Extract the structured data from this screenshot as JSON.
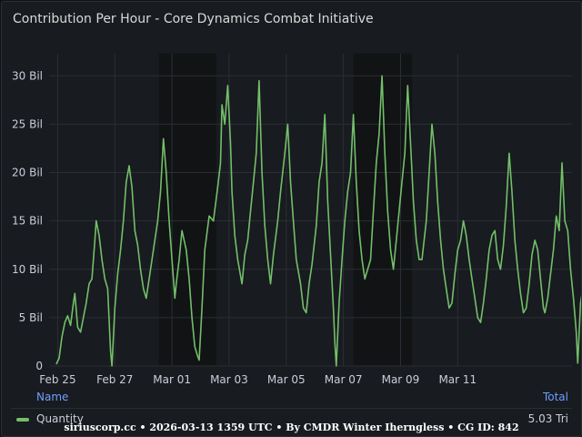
{
  "panel": {
    "title": "Contribution Per Hour - Core Dynamics Combat Initiative"
  },
  "colors": {
    "series": "#73bf69",
    "background": "#181b1f",
    "grid": "#2b2e33",
    "highlight_band": "#111315",
    "legend_header": "#6e9fff"
  },
  "legend": {
    "name_header": "Name",
    "total_header": "Total",
    "rows": [
      {
        "label": "Quantity",
        "total": "5.03 Tri"
      }
    ]
  },
  "watermark": "siriuscorp.cc • 2026-03-13 1359 UTC • By CMDR Winter Iherngless • CG ID: 842",
  "chart_data": {
    "type": "line",
    "ylim": [
      0,
      32
    ],
    "y_unit": "Bil",
    "y_tick_labels": [
      "0",
      "5 Bil",
      "10 Bil",
      "15 Bil",
      "20 Bil",
      "25 Bil",
      "30 Bil"
    ],
    "y_tick_values": [
      0,
      5,
      10,
      15,
      20,
      25,
      30
    ],
    "x_range_days": [
      24.7,
      43.0
    ],
    "x_tick_labels": [
      "Feb 25",
      "Feb 27",
      "Mar 01",
      "Mar 03",
      "Mar 05",
      "Mar 07",
      "Mar 09",
      "Mar 11"
    ],
    "x_tick_days": [
      25,
      27,
      29,
      31,
      33,
      35,
      37,
      39
    ],
    "shaded_bands_days": [
      [
        28.55,
        30.55
      ],
      [
        35.35,
        37.4
      ]
    ],
    "grid": true,
    "series": [
      {
        "name": "Quantity",
        "points": [
          [
            24.95,
            0.2
          ],
          [
            25.05,
            0.8
          ],
          [
            25.15,
            3.0
          ],
          [
            25.25,
            4.5
          ],
          [
            25.35,
            5.2
          ],
          [
            25.45,
            4.2
          ],
          [
            25.55,
            6.5
          ],
          [
            25.6,
            7.5
          ],
          [
            25.7,
            4.0
          ],
          [
            25.8,
            3.5
          ],
          [
            25.9,
            5.0
          ],
          [
            26.0,
            6.5
          ],
          [
            26.1,
            8.5
          ],
          [
            26.2,
            9.0
          ],
          [
            26.3,
            13.0
          ],
          [
            26.35,
            15.0
          ],
          [
            26.45,
            13.5
          ],
          [
            26.55,
            11.0
          ],
          [
            26.65,
            9.0
          ],
          [
            26.75,
            8.0
          ],
          [
            26.85,
            1.5
          ],
          [
            26.9,
            0.0
          ],
          [
            27.0,
            6.0
          ],
          [
            27.1,
            9.5
          ],
          [
            27.2,
            12.0
          ],
          [
            27.3,
            15.0
          ],
          [
            27.4,
            19.0
          ],
          [
            27.5,
            20.7
          ],
          [
            27.6,
            18.5
          ],
          [
            27.7,
            14.0
          ],
          [
            27.8,
            12.5
          ],
          [
            27.9,
            10.0
          ],
          [
            28.0,
            8.0
          ],
          [
            28.1,
            7.0
          ],
          [
            28.2,
            9.0
          ],
          [
            28.35,
            12.0
          ],
          [
            28.5,
            15.0
          ],
          [
            28.6,
            18.0
          ],
          [
            28.7,
            23.5
          ],
          [
            28.8,
            20.0
          ],
          [
            28.9,
            15.0
          ],
          [
            29.0,
            11.0
          ],
          [
            29.1,
            7.0
          ],
          [
            29.15,
            8.5
          ],
          [
            29.25,
            11.0
          ],
          [
            29.35,
            14.0
          ],
          [
            29.5,
            12.0
          ],
          [
            29.6,
            9.0
          ],
          [
            29.7,
            5.0
          ],
          [
            29.8,
            2.0
          ],
          [
            29.9,
            1.0
          ],
          [
            29.95,
            0.6
          ],
          [
            30.05,
            6.0
          ],
          [
            30.15,
            12.0
          ],
          [
            30.3,
            15.5
          ],
          [
            30.45,
            15.0
          ],
          [
            30.6,
            18.5
          ],
          [
            30.7,
            21.0
          ],
          [
            30.75,
            27.0
          ],
          [
            30.85,
            25.0
          ],
          [
            30.95,
            29.0
          ],
          [
            31.05,
            23.0
          ],
          [
            31.1,
            18.0
          ],
          [
            31.2,
            13.5
          ],
          [
            31.3,
            11.0
          ],
          [
            31.45,
            8.5
          ],
          [
            31.55,
            11.5
          ],
          [
            31.65,
            13.0
          ],
          [
            31.75,
            16.0
          ],
          [
            31.85,
            19.0
          ],
          [
            31.95,
            22.0
          ],
          [
            32.05,
            29.5
          ],
          [
            32.15,
            20.0
          ],
          [
            32.25,
            14.5
          ],
          [
            32.35,
            11.0
          ],
          [
            32.45,
            8.5
          ],
          [
            32.55,
            11.5
          ],
          [
            32.7,
            15.0
          ],
          [
            32.8,
            18.0
          ],
          [
            32.95,
            22.0
          ],
          [
            33.05,
            25.0
          ],
          [
            33.15,
            19.0
          ],
          [
            33.25,
            15.0
          ],
          [
            33.35,
            11.0
          ],
          [
            33.5,
            8.5
          ],
          [
            33.6,
            6.0
          ],
          [
            33.7,
            5.5
          ],
          [
            33.8,
            8.5
          ],
          [
            33.9,
            10.5
          ],
          [
            34.05,
            14.5
          ],
          [
            34.15,
            19.0
          ],
          [
            34.25,
            21.0
          ],
          [
            34.35,
            26.0
          ],
          [
            34.45,
            17.0
          ],
          [
            34.55,
            11.5
          ],
          [
            34.65,
            6.0
          ],
          [
            34.7,
            2.5
          ],
          [
            34.75,
            0.0
          ],
          [
            34.85,
            6.5
          ],
          [
            34.95,
            11.0
          ],
          [
            35.05,
            15.0
          ],
          [
            35.15,
            18.0
          ],
          [
            35.25,
            20.0
          ],
          [
            35.35,
            26.0
          ],
          [
            35.45,
            19.0
          ],
          [
            35.55,
            14.0
          ],
          [
            35.65,
            11.0
          ],
          [
            35.75,
            9.0
          ],
          [
            35.85,
            10.0
          ],
          [
            35.95,
            11.0
          ],
          [
            36.05,
            16.0
          ],
          [
            36.15,
            21.0
          ],
          [
            36.25,
            24.0
          ],
          [
            36.35,
            30.0
          ],
          [
            36.45,
            22.0
          ],
          [
            36.55,
            16.0
          ],
          [
            36.65,
            12.0
          ],
          [
            36.75,
            10.0
          ],
          [
            36.85,
            13.0
          ],
          [
            36.95,
            16.0
          ],
          [
            37.05,
            19.0
          ],
          [
            37.15,
            22.0
          ],
          [
            37.25,
            29.0
          ],
          [
            37.35,
            23.0
          ],
          [
            37.45,
            17.0
          ],
          [
            37.55,
            13.0
          ],
          [
            37.65,
            11.0
          ],
          [
            37.75,
            11.0
          ],
          [
            37.9,
            15.0
          ],
          [
            38.0,
            20.0
          ],
          [
            38.1,
            25.0
          ],
          [
            38.2,
            22.0
          ],
          [
            38.3,
            17.0
          ],
          [
            38.4,
            13.0
          ],
          [
            38.5,
            10.0
          ],
          [
            38.6,
            8.0
          ],
          [
            38.7,
            6.0
          ],
          [
            38.8,
            6.5
          ],
          [
            38.9,
            9.5
          ],
          [
            39.0,
            12.0
          ],
          [
            39.1,
            13.0
          ],
          [
            39.2,
            15.0
          ],
          [
            39.3,
            13.5
          ],
          [
            39.4,
            11.0
          ],
          [
            39.5,
            9.0
          ],
          [
            39.6,
            7.0
          ],
          [
            39.7,
            5.0
          ],
          [
            39.8,
            4.5
          ],
          [
            39.9,
            6.5
          ],
          [
            40.0,
            9.0
          ],
          [
            40.1,
            12.0
          ],
          [
            40.2,
            13.5
          ],
          [
            40.3,
            14.0
          ],
          [
            40.4,
            11.0
          ],
          [
            40.5,
            10.0
          ],
          [
            40.6,
            12.5
          ],
          [
            40.7,
            16.5
          ],
          [
            40.8,
            22.0
          ],
          [
            40.9,
            18.0
          ],
          [
            41.0,
            13.0
          ],
          [
            41.1,
            10.0
          ],
          [
            41.2,
            7.5
          ],
          [
            41.3,
            5.5
          ],
          [
            41.4,
            6.0
          ],
          [
            41.5,
            8.5
          ],
          [
            41.6,
            11.5
          ],
          [
            41.7,
            13.0
          ],
          [
            41.8,
            12.0
          ],
          [
            41.9,
            9.0
          ],
          [
            42.0,
            6.0
          ],
          [
            42.05,
            5.5
          ],
          [
            42.15,
            7.0
          ],
          [
            42.25,
            9.5
          ],
          [
            42.35,
            12.0
          ],
          [
            42.45,
            15.5
          ],
          [
            42.55,
            14.0
          ],
          [
            42.65,
            21.0
          ],
          [
            42.75,
            15.0
          ],
          [
            42.85,
            14.0
          ],
          [
            42.95,
            10.0
          ],
          [
            43.05,
            7.0
          ],
          [
            43.15,
            3.5
          ],
          [
            43.2,
            0.3
          ],
          [
            43.3,
            6.5
          ],
          [
            43.4,
            8.5
          ],
          [
            43.45,
            15.0
          ],
          [
            43.55,
            0.5
          ]
        ]
      }
    ]
  }
}
